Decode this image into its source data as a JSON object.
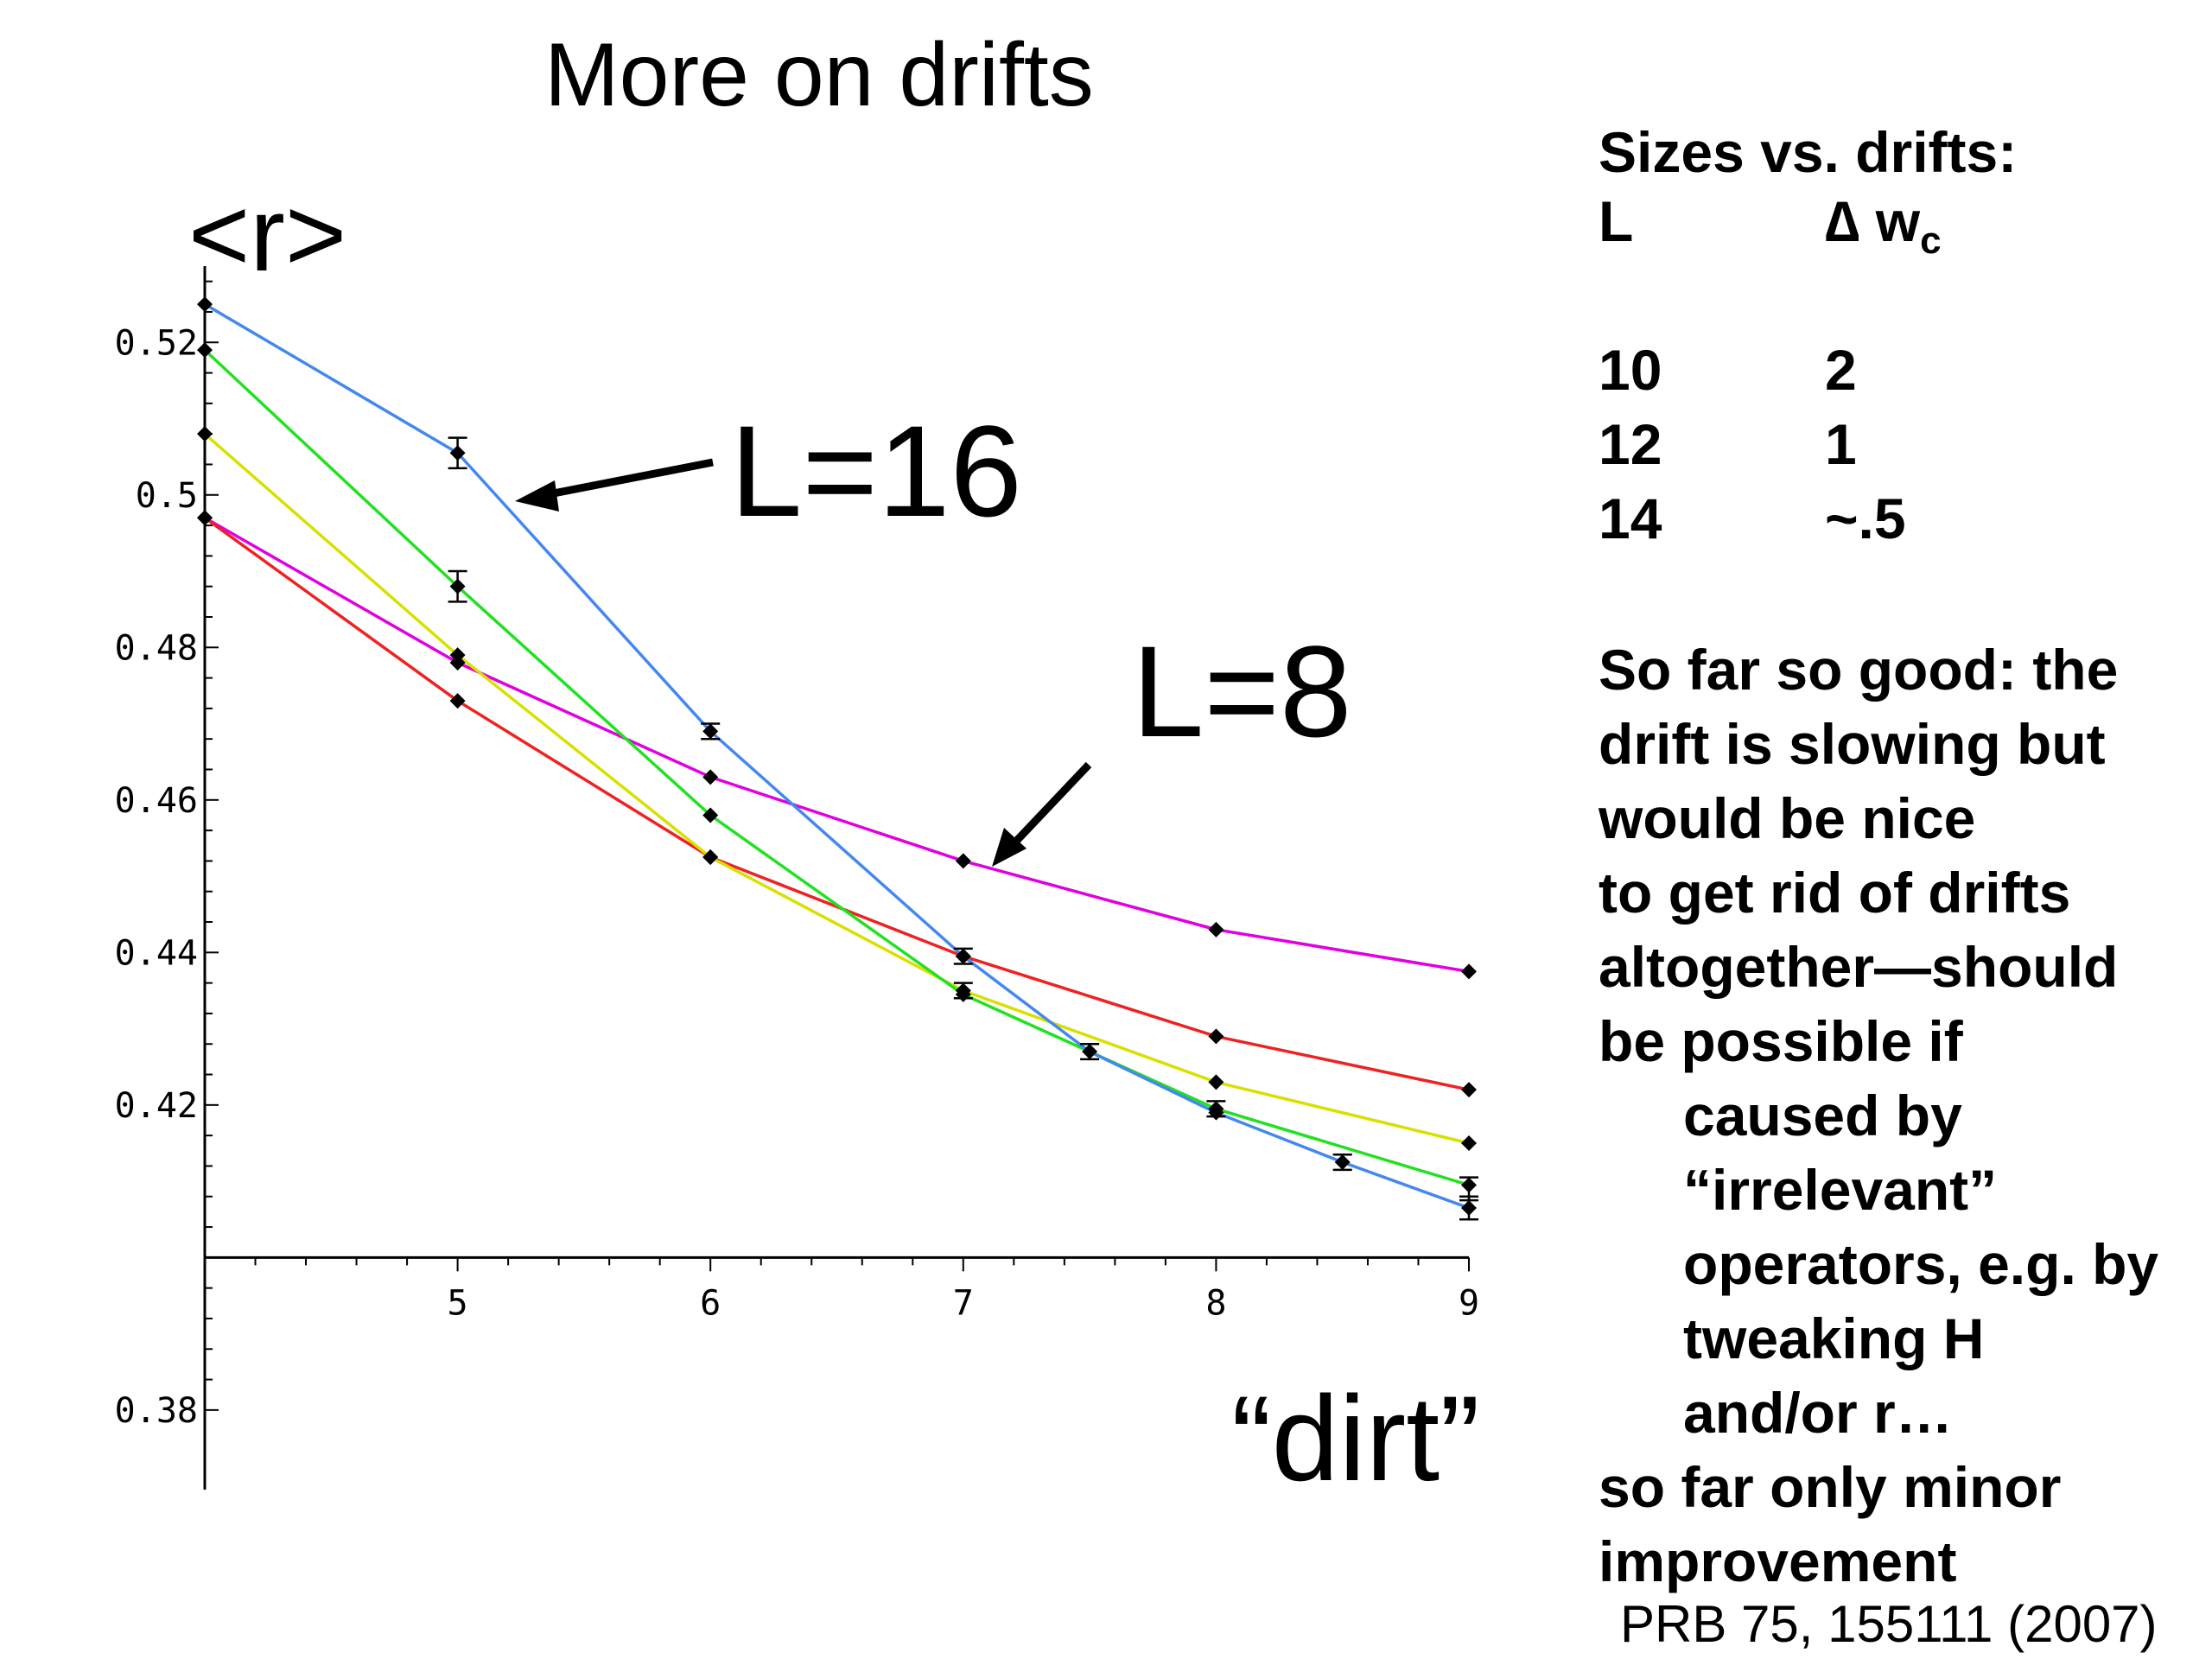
{
  "slide": {
    "title": "More on drifts",
    "citation": "PRB 75, 155111 (2007)"
  },
  "annotations": {
    "l16": "L=16",
    "l8": "L=8"
  },
  "sizes_table": {
    "heading": "Sizes vs. drifts:",
    "col_l": "L",
    "col_w_symbol": "∆",
    "col_w": "w",
    "col_w_sub": "c",
    "rows": [
      {
        "L": "10",
        "dw": "2"
      },
      {
        "L": "12",
        "dw": "1"
      },
      {
        "L": "14",
        "dw": "~.5"
      }
    ]
  },
  "notes": [
    "So far so good: the",
    "drift is slowing but",
    "would be nice",
    "to get rid of drifts",
    "altogether—should",
    "be possible if",
    "caused by",
    "“irrelevant”",
    "operators, e.g. by",
    "tweaking H",
    "and/or r…",
    "so far only minor",
    "improvement"
  ],
  "chart_data": {
    "type": "line",
    "xlabel": "“dirt”",
    "ylabel": "<r>",
    "xlim": [
      4,
      9
    ],
    "ylim": [
      0.375,
      0.53
    ],
    "x_axis_at_y": 0.4,
    "x_ticks": [
      "5",
      "6",
      "7",
      "8",
      "9"
    ],
    "y_ticks": [
      "0.38",
      "0.42",
      "0.44",
      "0.46",
      "0.48",
      "0.5",
      "0.52"
    ],
    "grid": false,
    "series": [
      {
        "color": "#e000e0",
        "points": [
          [
            4,
            0.497
          ],
          [
            5,
            0.478
          ],
          [
            6,
            0.463
          ],
          [
            7,
            0.452
          ],
          [
            8,
            0.443
          ],
          [
            9,
            0.4375
          ]
        ]
      },
      {
        "color": "#ee2222",
        "points": [
          [
            4,
            0.497
          ],
          [
            5,
            0.473
          ],
          [
            6,
            0.4525
          ],
          [
            7,
            0.4395
          ],
          [
            8,
            0.429
          ],
          [
            9,
            0.422
          ]
        ]
      },
      {
        "color": "#d8e000",
        "points": [
          [
            4,
            0.508
          ],
          [
            5,
            0.479
          ],
          [
            6,
            0.4525
          ],
          [
            7,
            0.435
          ],
          [
            8,
            0.423
          ],
          [
            9,
            0.415
          ]
        ]
      },
      {
        "color": "#22e022",
        "points": [
          [
            4,
            0.519
          ],
          [
            5,
            0.488
          ],
          [
            6,
            0.458
          ],
          [
            7,
            0.4345
          ],
          [
            8,
            0.4195
          ],
          [
            9,
            0.4095
          ]
        ]
      },
      {
        "color": "#4488ee",
        "points": [
          [
            4,
            0.525
          ],
          [
            5,
            0.5055
          ],
          [
            6,
            0.469
          ],
          [
            7,
            0.4395
          ],
          [
            7.5,
            0.427
          ],
          [
            8,
            0.419
          ],
          [
            8.5,
            0.4125
          ],
          [
            9,
            0.4065
          ]
        ]
      }
    ],
    "error_bars": [
      {
        "x": 5,
        "y": 0.5055,
        "err": 0.002
      },
      {
        "x": 5,
        "y": 0.488,
        "err": 0.002
      },
      {
        "x": 6,
        "y": 0.469,
        "err": 0.001
      },
      {
        "x": 7,
        "y": 0.4395,
        "err": 0.001
      },
      {
        "x": 7,
        "y": 0.435,
        "err": 0.001
      },
      {
        "x": 7.5,
        "y": 0.427,
        "err": 0.001
      },
      {
        "x": 8,
        "y": 0.4195,
        "err": 0.001
      },
      {
        "x": 8.5,
        "y": 0.4125,
        "err": 0.001
      },
      {
        "x": 9,
        "y": 0.409,
        "err": 0.0015
      },
      {
        "x": 9,
        "y": 0.4065,
        "err": 0.0015
      }
    ]
  }
}
